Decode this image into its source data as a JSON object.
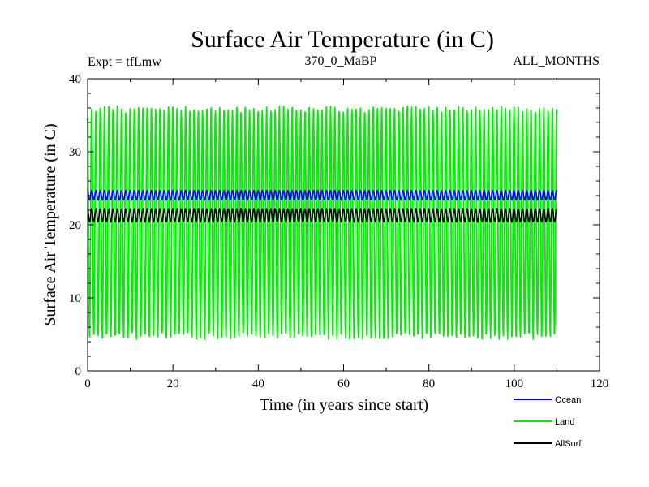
{
  "chart_data": {
    "type": "line",
    "title": "Surface Air Temperature (in C)",
    "subtitle_left": "Expt = tfLmw",
    "subtitle_center": "370_0_MaBP",
    "subtitle_right": "ALL_MONTHS",
    "xlabel": "Time (in years since start)",
    "ylabel": "Surface Air Temperature (in C)",
    "xlim": [
      0,
      120
    ],
    "ylim": [
      0,
      40
    ],
    "xticks": [
      0,
      20,
      40,
      60,
      80,
      100,
      120
    ],
    "yticks": [
      0,
      10,
      20,
      30,
      40
    ],
    "xtick_labels": [
      "0",
      "20",
      "40",
      "60",
      "80",
      "100",
      "120"
    ],
    "ytick_labels": [
      "0",
      "10",
      "20",
      "30",
      "40"
    ],
    "x_end": 110,
    "cycles_per_year": 1,
    "legend_position": "bottom-right",
    "series": [
      {
        "name": "Ocean",
        "color": "#0000ff",
        "min": 23.4,
        "max": 24.7,
        "mean": 24.0
      },
      {
        "name": "Land",
        "color": "#00ee00",
        "min": 4.8,
        "max": 35.8,
        "mean": 20.3
      },
      {
        "name": "AllSurf",
        "color": "#000000",
        "min": 20.4,
        "max": 22.2,
        "mean": 21.3
      }
    ]
  }
}
